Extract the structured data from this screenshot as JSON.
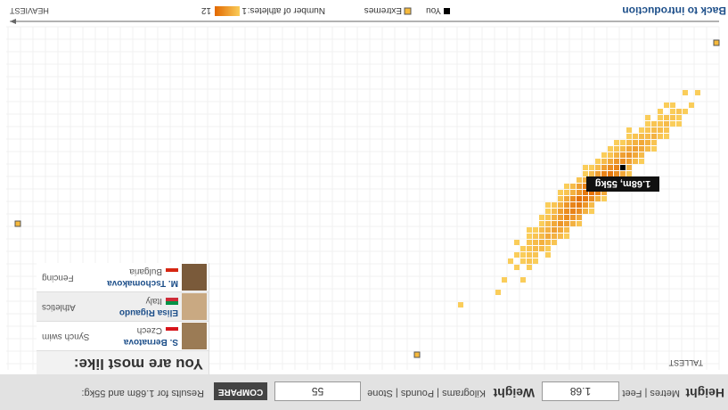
{
  "controls": {
    "height_label": "Height",
    "height_units": "Metres | Feet",
    "height_value": "1.68",
    "weight_label": "Weight",
    "weight_units": "Kilograms | Pounds | Stone",
    "weight_value": "55",
    "button": "COMPARE",
    "results": "Results for 1.68m and 55kg:"
  },
  "panel": {
    "title": "You are most like:",
    "athletes": [
      {
        "name": "S. Bernatova",
        "country": "Czech",
        "sport": "Synch swim"
      },
      {
        "name": "Elisa Rigaudo",
        "country": "Italy",
        "sport": "Athletics"
      },
      {
        "name": "M. Tschomakova",
        "country": "Bulgaria",
        "sport": "Fencing"
      }
    ]
  },
  "plot": {
    "y_axis_label": "TALLEST",
    "x_axis_label": "HEAVIEST",
    "you": {
      "weight_bin": 15,
      "height_bin": 22,
      "label": "1.68m, 55kg"
    },
    "extremes": [
      {
        "weight_bin": 0,
        "height_bin": 2
      },
      {
        "weight_bin": 112,
        "height_bin": 31
      },
      {
        "weight_bin": 48,
        "height_bin": 52
      }
    ],
    "rows": [
      {
        "bin": 10,
        "first": 3,
        "counts": [
          1,
          null,
          1
        ]
      },
      {
        "bin": 12,
        "first": 4,
        "counts": [
          1,
          null,
          null,
          1,
          1
        ]
      },
      {
        "bin": 13,
        "first": 5,
        "counts": [
          1,
          2,
          1,
          null,
          1
        ]
      },
      {
        "bin": 14,
        "first": 6,
        "counts": [
          1,
          2,
          2,
          1,
          null,
          1
        ]
      },
      {
        "bin": 15,
        "first": 6,
        "counts": [
          1,
          1,
          3,
          2,
          2,
          1
        ]
      },
      {
        "bin": 16,
        "first": 8,
        "counts": [
          2,
          3,
          3,
          2,
          1,
          null,
          1
        ]
      },
      {
        "bin": 17,
        "first": 8,
        "counts": [
          1,
          2,
          4,
          3,
          3,
          2,
          1
        ]
      },
      {
        "bin": 18,
        "first": 10,
        "counts": [
          2,
          4,
          5,
          4,
          3,
          1,
          1
        ]
      },
      {
        "bin": 19,
        "first": 10,
        "counts": [
          1,
          3,
          5,
          6,
          5,
          3,
          2,
          1
        ]
      },
      {
        "bin": 20,
        "first": 12,
        "counts": [
          3,
          5,
          7,
          6,
          4,
          2,
          1
        ]
      },
      {
        "bin": 21,
        "first": 12,
        "counts": [
          1,
          3,
          6,
          8,
          7,
          5,
          3,
          1
        ]
      },
      {
        "bin": 22,
        "first": 14,
        "counts": [
          4,
          7,
          9,
          8,
          6,
          3,
          1,
          1
        ]
      },
      {
        "bin": 23,
        "first": 14,
        "counts": [
          2,
          5,
          8,
          10,
          9,
          6,
          3,
          1
        ]
      },
      {
        "bin": 24,
        "first": 16,
        "counts": [
          4,
          8,
          11,
          10,
          7,
          4,
          2
        ]
      },
      {
        "bin": 25,
        "first": 16,
        "counts": [
          1,
          3,
          7,
          10,
          12,
          9,
          6,
          3,
          1
        ]
      },
      {
        "bin": 26,
        "first": 18,
        "counts": [
          5,
          9,
          11,
          10,
          7,
          4,
          2,
          1
        ]
      },
      {
        "bin": 27,
        "first": 18,
        "counts": [
          1,
          4,
          8,
          10,
          11,
          8,
          5,
          2
        ]
      },
      {
        "bin": 28,
        "first": 20,
        "counts": [
          3,
          7,
          10,
          9,
          7,
          4,
          2,
          1
        ]
      },
      {
        "bin": 29,
        "first": 20,
        "counts": [
          1,
          4,
          8,
          9,
          8,
          6,
          3,
          1
        ]
      },
      {
        "bin": 30,
        "first": 22,
        "counts": [
          5,
          7,
          8,
          6,
          4,
          2,
          1
        ]
      },
      {
        "bin": 31,
        "first": 22,
        "counts": [
          2,
          4,
          6,
          7,
          5,
          3,
          1
        ]
      },
      {
        "bin": 32,
        "first": 24,
        "counts": [
          3,
          5,
          6,
          4,
          3,
          1,
          1
        ]
      },
      {
        "bin": 33,
        "first": 24,
        "counts": [
          1,
          3,
          4,
          5,
          3,
          2,
          1
        ]
      },
      {
        "bin": 34,
        "first": 26,
        "counts": [
          2,
          3,
          4,
          3,
          2,
          null,
          1
        ]
      },
      {
        "bin": 35,
        "first": 27,
        "counts": [
          1,
          3,
          3,
          2,
          1
        ]
      },
      {
        "bin": 36,
        "first": 27,
        "counts": [
          1,
          null,
          2,
          2,
          1,
          1
        ]
      },
      {
        "bin": 37,
        "first": 29,
        "counts": [
          1,
          2,
          1,
          null,
          1
        ]
      },
      {
        "bin": 38,
        "first": 30,
        "counts": [
          1,
          null,
          1
        ]
      },
      {
        "bin": 40,
        "first": 31,
        "counts": [
          1,
          null,
          null,
          1
        ]
      },
      {
        "bin": 42,
        "first": 35,
        "counts": [
          1
        ]
      },
      {
        "bin": 44,
        "first": 41,
        "counts": [
          1
        ]
      }
    ]
  },
  "footer": {
    "back": "Back to introduction",
    "you": "You",
    "extremes": "Extremes",
    "count_label": "Number of athletes:",
    "count_min": 1,
    "count_max": 12
  }
}
